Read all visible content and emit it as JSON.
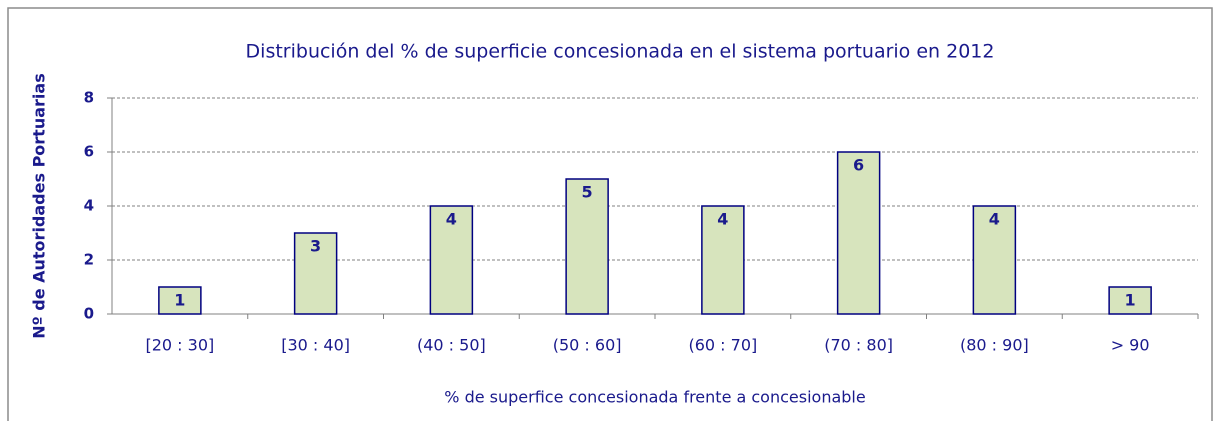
{
  "chart_data": {
    "type": "bar",
    "title": "Distribución del % de superficie concesionada en el sistema portuario en 2012",
    "x_label": "% de superfice concesionada frente a concesionable",
    "y_label": "Nº de Autoridades Portuarias",
    "categories": [
      "[20 : 30]",
      "[30 : 40]",
      "(40 : 50]",
      "(50 : 60]",
      "(60 : 70]",
      "(70 : 80]",
      "(80 : 90]",
      "> 90"
    ],
    "values": [
      1,
      3,
      4,
      5,
      4,
      6,
      4,
      1
    ],
    "color": "#d7e4bd",
    "edge_color": "#000080",
    "ylim": [
      0,
      8
    ],
    "yticks": [
      0,
      2,
      4,
      6,
      8
    ],
    "grid": true
  }
}
